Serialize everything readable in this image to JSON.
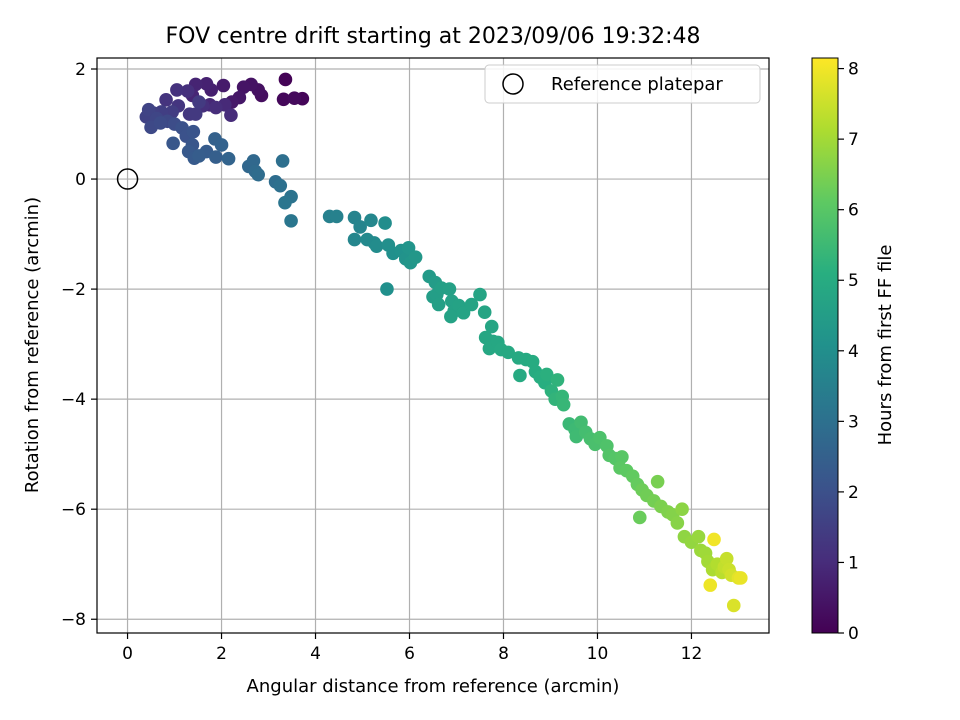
{
  "chart_data": {
    "type": "scatter",
    "title": "FOV centre drift starting at 2023/09/06 19:32:48",
    "xlabel": "Angular distance from reference (arcmin)",
    "ylabel": "Rotation from reference (arcmin)",
    "xlim": [
      -0.65,
      13.65
    ],
    "ylim": [
      -8.25,
      2.2
    ],
    "xticks": [
      0,
      2,
      4,
      6,
      8,
      10,
      12
    ],
    "yticks": [
      -8,
      -6,
      -4,
      -2,
      0,
      2
    ],
    "grid": true,
    "legend": {
      "location": "top-right",
      "entries": [
        "Reference platepar"
      ]
    },
    "reference_point": {
      "x": 0,
      "y": 0,
      "label": "Reference platepar"
    },
    "colorbar": {
      "label": "Hours from first FF file",
      "range": [
        0,
        8.15
      ],
      "ticks": [
        0,
        1,
        2,
        3,
        4,
        5,
        6,
        7,
        8
      ],
      "colormap": "viridis"
    },
    "points_columns": [
      "x",
      "y",
      "hours"
    ],
    "points": [
      [
        3.36,
        1.81,
        0.05
      ],
      [
        3.72,
        1.46,
        0.1
      ],
      [
        3.32,
        1.45,
        0.15
      ],
      [
        3.55,
        1.47,
        0.2
      ],
      [
        2.85,
        1.52,
        0.3
      ],
      [
        2.78,
        1.62,
        0.35
      ],
      [
        2.63,
        1.72,
        0.4
      ],
      [
        2.47,
        1.67,
        0.45
      ],
      [
        2.38,
        1.48,
        0.5
      ],
      [
        2.22,
        1.4,
        0.55
      ],
      [
        2.04,
        1.7,
        0.6
      ],
      [
        1.78,
        1.62,
        0.7
      ],
      [
        1.68,
        1.73,
        0.75
      ],
      [
        1.45,
        1.72,
        0.8
      ],
      [
        1.38,
        1.52,
        0.85
      ],
      [
        1.75,
        1.35,
        0.9
      ],
      [
        2.07,
        1.35,
        0.95
      ],
      [
        2.2,
        1.16,
        1.0
      ],
      [
        1.88,
        1.3,
        1.05
      ],
      [
        1.6,
        1.33,
        1.1
      ],
      [
        1.28,
        1.6,
        1.1
      ],
      [
        1.05,
        1.62,
        1.15
      ],
      [
        0.82,
        1.44,
        1.2
      ],
      [
        1.08,
        1.33,
        1.25
      ],
      [
        1.32,
        1.18,
        1.3
      ],
      [
        1.45,
        1.18,
        1.35
      ],
      [
        1.52,
        1.4,
        1.4
      ],
      [
        0.95,
        1.22,
        1.45
      ],
      [
        0.72,
        1.22,
        1.5
      ],
      [
        0.55,
        1.2,
        1.55
      ],
      [
        0.4,
        1.13,
        1.6
      ],
      [
        0.45,
        1.26,
        1.65
      ],
      [
        0.62,
        1.1,
        1.7
      ],
      [
        0.85,
        1.05,
        1.75
      ],
      [
        0.5,
        0.94,
        1.8
      ],
      [
        0.7,
        1.02,
        1.85
      ],
      [
        1.0,
        1.0,
        1.9
      ],
      [
        1.16,
        0.93,
        2.0
      ],
      [
        1.25,
        0.78,
        2.05
      ],
      [
        1.4,
        0.86,
        2.1
      ],
      [
        1.38,
        0.62,
        2.15
      ],
      [
        0.97,
        0.65,
        2.2
      ],
      [
        1.3,
        0.5,
        2.25
      ],
      [
        1.42,
        0.38,
        2.3
      ],
      [
        1.68,
        0.5,
        2.35
      ],
      [
        1.52,
        0.42,
        2.4
      ],
      [
        1.88,
        0.4,
        2.45
      ],
      [
        1.86,
        0.73,
        2.5
      ],
      [
        2.0,
        0.62,
        2.55
      ],
      [
        2.15,
        0.37,
        2.6
      ],
      [
        2.58,
        0.23,
        2.7
      ],
      [
        2.68,
        0.33,
        2.75
      ],
      [
        2.72,
        0.14,
        2.8
      ],
      [
        2.78,
        0.08,
        2.85
      ],
      [
        3.15,
        -0.05,
        2.9
      ],
      [
        3.3,
        0.33,
        2.95
      ],
      [
        3.25,
        -0.12,
        3.0
      ],
      [
        3.48,
        -0.32,
        3.1
      ],
      [
        3.35,
        -0.43,
        3.15
      ],
      [
        3.48,
        -0.76,
        3.2
      ],
      [
        4.3,
        -0.68,
        3.5
      ],
      [
        4.45,
        -0.68,
        3.55
      ],
      [
        4.83,
        -0.7,
        3.6
      ],
      [
        4.95,
        -0.87,
        3.65
      ],
      [
        4.83,
        -1.1,
        3.7
      ],
      [
        5.18,
        -0.75,
        3.75
      ],
      [
        5.1,
        -1.1,
        3.8
      ],
      [
        5.25,
        -1.16,
        3.85
      ],
      [
        5.3,
        -1.22,
        3.9
      ],
      [
        5.48,
        -0.8,
        3.95
      ],
      [
        5.55,
        -1.2,
        4.0
      ],
      [
        5.52,
        -2.0,
        4.05
      ],
      [
        5.65,
        -1.35,
        4.05
      ],
      [
        5.82,
        -1.3,
        4.1
      ],
      [
        5.92,
        -1.45,
        4.15
      ],
      [
        5.98,
        -1.25,
        4.2
      ],
      [
        6.02,
        -1.52,
        4.25
      ],
      [
        6.13,
        -1.42,
        4.3
      ],
      [
        6.42,
        -1.77,
        4.4
      ],
      [
        6.55,
        -1.88,
        4.45
      ],
      [
        6.5,
        -2.14,
        4.5
      ],
      [
        6.58,
        -2.1,
        4.52
      ],
      [
        6.68,
        -1.98,
        4.55
      ],
      [
        6.62,
        -2.28,
        4.58
      ],
      [
        6.85,
        -2.0,
        4.6
      ],
      [
        6.9,
        -2.22,
        4.62
      ],
      [
        6.95,
        -2.4,
        4.64
      ],
      [
        6.88,
        -2.5,
        4.66
      ],
      [
        7.05,
        -2.3,
        4.68
      ],
      [
        7.15,
        -2.43,
        4.7
      ],
      [
        7.32,
        -2.28,
        4.72
      ],
      [
        7.5,
        -2.1,
        4.74
      ],
      [
        7.6,
        -2.42,
        4.76
      ],
      [
        7.75,
        -2.68,
        4.78
      ],
      [
        7.62,
        -2.88,
        4.8
      ],
      [
        7.78,
        -2.95,
        4.82
      ],
      [
        7.7,
        -3.08,
        4.84
      ],
      [
        7.88,
        -2.97,
        4.86
      ],
      [
        7.95,
        -3.1,
        4.88
      ],
      [
        8.1,
        -3.15,
        4.9
      ],
      [
        8.32,
        -3.25,
        4.92
      ],
      [
        8.48,
        -3.28,
        4.94
      ],
      [
        8.35,
        -3.57,
        4.96
      ],
      [
        8.62,
        -3.32,
        4.98
      ],
      [
        8.68,
        -3.5,
        5.0
      ],
      [
        8.78,
        -3.6,
        5.05
      ],
      [
        8.88,
        -3.7,
        5.1
      ],
      [
        8.92,
        -3.55,
        5.15
      ],
      [
        9.02,
        -3.85,
        5.2
      ],
      [
        9.15,
        -3.65,
        5.25
      ],
      [
        9.1,
        -4.0,
        5.3
      ],
      [
        9.25,
        -3.95,
        5.35
      ],
      [
        9.28,
        -4.1,
        5.4
      ],
      [
        9.4,
        -4.45,
        5.45
      ],
      [
        9.52,
        -4.55,
        5.5
      ],
      [
        9.55,
        -4.68,
        5.55
      ],
      [
        9.65,
        -4.42,
        5.6
      ],
      [
        9.75,
        -4.6,
        5.65
      ],
      [
        9.85,
        -4.72,
        5.7
      ],
      [
        9.95,
        -4.82,
        5.75
      ],
      [
        10.05,
        -4.7,
        5.8
      ],
      [
        10.2,
        -4.85,
        5.85
      ],
      [
        10.25,
        -5.02,
        5.9
      ],
      [
        10.38,
        -5.08,
        5.95
      ],
      [
        10.52,
        -5.05,
        6.0
      ],
      [
        10.48,
        -5.25,
        6.05
      ],
      [
        10.62,
        -5.3,
        6.1
      ],
      [
        10.75,
        -5.4,
        6.15
      ],
      [
        10.85,
        -5.55,
        6.2
      ],
      [
        10.9,
        -6.15,
        6.25
      ],
      [
        10.95,
        -5.65,
        6.3
      ],
      [
        11.05,
        -5.75,
        6.35
      ],
      [
        11.2,
        -5.85,
        6.4
      ],
      [
        11.28,
        -5.5,
        6.45
      ],
      [
        11.35,
        -5.95,
        6.5
      ],
      [
        11.5,
        -6.05,
        6.55
      ],
      [
        11.6,
        -6.1,
        6.6
      ],
      [
        11.7,
        -6.25,
        6.65
      ],
      [
        11.8,
        -6.0,
        6.7
      ],
      [
        11.85,
        -6.5,
        6.75
      ],
      [
        12.0,
        -6.6,
        6.8
      ],
      [
        12.15,
        -6.5,
        6.85
      ],
      [
        12.2,
        -6.75,
        6.9
      ],
      [
        12.3,
        -6.8,
        6.95
      ],
      [
        12.35,
        -6.95,
        7.0
      ],
      [
        12.45,
        -7.1,
        7.1
      ],
      [
        12.55,
        -7.0,
        7.2
      ],
      [
        12.65,
        -7.15,
        7.3
      ],
      [
        12.7,
        -7.05,
        7.4
      ],
      [
        12.75,
        -6.9,
        7.45
      ],
      [
        12.8,
        -7.1,
        7.5
      ],
      [
        12.85,
        -7.2,
        7.6
      ],
      [
        12.9,
        -7.75,
        7.7
      ],
      [
        13.0,
        -7.25,
        7.8
      ],
      [
        13.05,
        -7.25,
        7.9
      ],
      [
        12.4,
        -7.38,
        7.95
      ],
      [
        12.48,
        -6.55,
        8.0
      ]
    ]
  }
}
